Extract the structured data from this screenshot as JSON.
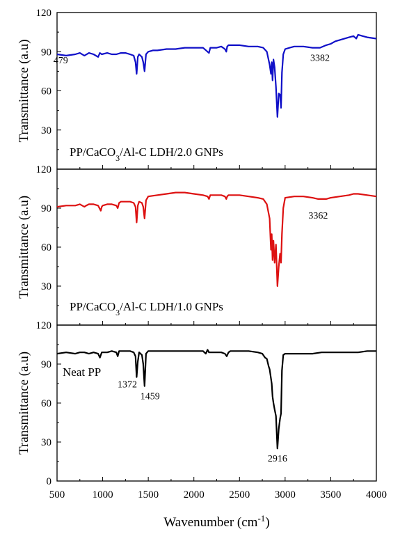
{
  "chart_data": [
    {
      "type": "line",
      "label_parts": [
        "PP/CaCO",
        "3",
        "/Al-C LDH/2.0 GNPs"
      ],
      "color": "#1010c8",
      "xlim": [
        500,
        4000
      ],
      "ylim": [
        0,
        120
      ],
      "yticks": [
        "30",
        "60",
        "90",
        "120"
      ],
      "ylabel": "Transmittance (a.u)",
      "annotations": [
        {
          "text": "479",
          "x": 540,
          "y": 81
        },
        {
          "text": "3382",
          "x": 3382,
          "y": 83
        }
      ],
      "series": [
        {
          "x": [
            500,
            600,
            700,
            750,
            800,
            850,
            900,
            950,
            970,
            990,
            1050,
            1100,
            1150,
            1200,
            1250,
            1300,
            1340,
            1360,
            1372,
            1385,
            1400,
            1430,
            1445,
            1459,
            1475,
            1500,
            1550,
            1600,
            1700,
            1800,
            1900,
            2000,
            2100,
            2150,
            2165,
            2180,
            2200,
            2250,
            2300,
            2340,
            2355,
            2365,
            2380,
            2400,
            2500,
            2600,
            2700,
            2760,
            2800,
            2830,
            2845,
            2853,
            2862,
            2872,
            2885,
            2900,
            2916,
            2930,
            2945,
            2955,
            2965,
            2980,
            3000,
            3050,
            3100,
            3200,
            3300,
            3382,
            3450,
            3500,
            3550,
            3600,
            3700,
            3750,
            3780,
            3800,
            3850,
            3900,
            4000
          ],
          "y": [
            88,
            87,
            88,
            89,
            87,
            89,
            88,
            86,
            89,
            88,
            89,
            88,
            88,
            89,
            89,
            88,
            87,
            82,
            73,
            86,
            88,
            86,
            82,
            75,
            88,
            90,
            91,
            91,
            92,
            92,
            93,
            93,
            93,
            90,
            89,
            93,
            93,
            93,
            94,
            92,
            90,
            94,
            95,
            95,
            95,
            94,
            94,
            93,
            90,
            80,
            73,
            82,
            68,
            84,
            78,
            63,
            40,
            58,
            57,
            47,
            74,
            88,
            92,
            93,
            94,
            94,
            93,
            93,
            95,
            96,
            98,
            99,
            101,
            102,
            100,
            103,
            102,
            101,
            100
          ]
        }
      ]
    },
    {
      "type": "line",
      "label_parts": [
        "PP/CaCO",
        "3",
        "/Al-C LDH/1.0 GNPs"
      ],
      "color": "#dd1111",
      "xlim": [
        500,
        4000
      ],
      "ylim": [
        0,
        120
      ],
      "yticks": [
        "30",
        "60",
        "90",
        "120"
      ],
      "ylabel": "Transmittance (a.u)",
      "annotations": [
        {
          "text": "3362",
          "x": 3362,
          "y": 82
        }
      ],
      "series": [
        {
          "x": [
            500,
            600,
            700,
            750,
            800,
            820,
            850,
            900,
            950,
            980,
            990,
            1000,
            1050,
            1100,
            1150,
            1165,
            1180,
            1200,
            1300,
            1340,
            1360,
            1372,
            1385,
            1400,
            1430,
            1445,
            1459,
            1475,
            1500,
            1600,
            1700,
            1800,
            1900,
            2000,
            2100,
            2150,
            2165,
            2180,
            2200,
            2300,
            2340,
            2355,
            2365,
            2380,
            2400,
            2500,
            2600,
            2700,
            2760,
            2800,
            2830,
            2845,
            2853,
            2862,
            2872,
            2885,
            2900,
            2916,
            2930,
            2945,
            2955,
            2965,
            2980,
            3000,
            3100,
            3200,
            3300,
            3362,
            3450,
            3500,
            3600,
            3700,
            3750,
            3800,
            3900,
            4000
          ],
          "y": [
            91,
            92,
            92,
            93,
            91,
            92,
            93,
            93,
            92,
            88,
            91,
            92,
            93,
            93,
            92,
            90,
            94,
            95,
            95,
            94,
            91,
            79,
            92,
            95,
            94,
            91,
            82,
            96,
            99,
            100,
            101,
            102,
            102,
            101,
            100,
            99,
            97,
            100,
            100,
            100,
            99,
            97,
            99,
            100,
            100,
            100,
            99,
            98,
            97,
            93,
            82,
            58,
            70,
            50,
            65,
            48,
            62,
            30,
            45,
            55,
            48,
            70,
            90,
            98,
            99,
            99,
            98,
            97,
            97,
            98,
            99,
            100,
            101,
            101,
            100,
            99
          ]
        }
      ]
    },
    {
      "type": "line",
      "label_parts": [
        "Neat PP"
      ],
      "color": "#000000",
      "xlim": [
        500,
        4000
      ],
      "ylim": [
        0,
        120
      ],
      "yticks": [
        "0",
        "30",
        "60",
        "90",
        "120"
      ],
      "xticks": [
        "500",
        "1000",
        "1500",
        "2000",
        "2500",
        "3000",
        "3500",
        "4000"
      ],
      "ylabel": "Transmittance (a.u)",
      "xlabel_parts": [
        "Wavenumber (cm",
        "-1",
        ")"
      ],
      "annotations": [
        {
          "text": "1372",
          "x": 1270,
          "y": 72
        },
        {
          "text": "1459",
          "x": 1520,
          "y": 63
        },
        {
          "text": "2916",
          "x": 2916,
          "y": 15
        }
      ],
      "series": [
        {
          "x": [
            500,
            600,
            700,
            750,
            800,
            850,
            900,
            950,
            970,
            990,
            1050,
            1100,
            1150,
            1165,
            1180,
            1200,
            1300,
            1340,
            1360,
            1372,
            1385,
            1400,
            1430,
            1445,
            1459,
            1475,
            1500,
            1600,
            1700,
            1800,
            1900,
            2000,
            2100,
            2130,
            2150,
            2165,
            2200,
            2300,
            2340,
            2360,
            2380,
            2400,
            2500,
            2600,
            2700,
            2750,
            2780,
            2800,
            2820,
            2830,
            2845,
            2853,
            2862,
            2872,
            2885,
            2900,
            2916,
            2930,
            2945,
            2955,
            2965,
            2980,
            3000,
            3100,
            3200,
            3300,
            3400,
            3500,
            3600,
            3700,
            3800,
            3900,
            4000
          ],
          "y": [
            98,
            99,
            98,
            99,
            99,
            98,
            99,
            98,
            95,
            99,
            99,
            100,
            99,
            96,
            100,
            100,
            100,
            99,
            96,
            80,
            92,
            99,
            97,
            90,
            73,
            98,
            100,
            100,
            100,
            100,
            100,
            100,
            100,
            98,
            101,
            99,
            99,
            99,
            98,
            96,
            99,
            100,
            100,
            100,
            99,
            98,
            95,
            94,
            88,
            86,
            79,
            75,
            65,
            60,
            55,
            50,
            25,
            40,
            48,
            52,
            85,
            97,
            98,
            98,
            98,
            98,
            99,
            99,
            99,
            99,
            99,
            100,
            100
          ]
        }
      ]
    }
  ]
}
